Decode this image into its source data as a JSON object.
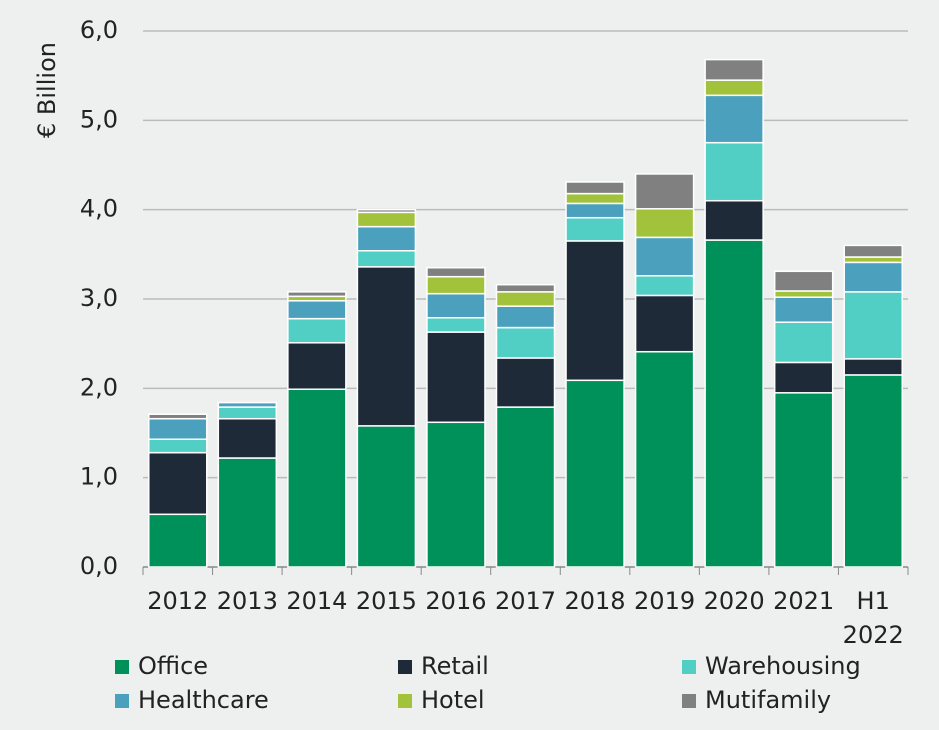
{
  "chart_data": {
    "type": "stacked_bar",
    "y_label": "€ Billion",
    "categories": [
      "2012",
      "2013",
      "2014",
      "2015",
      "2016",
      "2017",
      "2018",
      "2019",
      "2020",
      "2021",
      "H1 2022"
    ],
    "series": [
      {
        "name": "Office",
        "color": "#00915a",
        "values": [
          0.59,
          1.22,
          1.99,
          1.58,
          1.62,
          1.79,
          2.09,
          2.41,
          3.66,
          1.95,
          2.15
        ]
      },
      {
        "name": "Retail",
        "color": "#1e2a38",
        "values": [
          0.69,
          0.44,
          0.52,
          1.78,
          1.01,
          0.55,
          1.56,
          0.63,
          0.44,
          0.34,
          0.18
        ]
      },
      {
        "name": "Warehousing",
        "color": "#52cfc4",
        "values": [
          0.15,
          0.13,
          0.27,
          0.18,
          0.16,
          0.34,
          0.26,
          0.22,
          0.65,
          0.45,
          0.75
        ]
      },
      {
        "name": "Healthcare",
        "color": "#4aa0bd",
        "values": [
          0.23,
          0.05,
          0.2,
          0.27,
          0.27,
          0.24,
          0.16,
          0.43,
          0.53,
          0.28,
          0.33
        ]
      },
      {
        "name": "Hotel",
        "color": "#a3c23c",
        "values": [
          0,
          0,
          0.05,
          0.16,
          0.19,
          0.16,
          0.11,
          0.32,
          0.17,
          0.07,
          0.06
        ]
      },
      {
        "name": "Mutifamily",
        "color": "#808080",
        "values": [
          0.05,
          0,
          0.05,
          0.03,
          0.1,
          0.08,
          0.13,
          0.39,
          0.23,
          0.22,
          0.13
        ]
      }
    ],
    "ylim": [
      0,
      6
    ],
    "yticks": [
      {
        "value": 0,
        "label": "0,0"
      },
      {
        "value": 1,
        "label": "1,0"
      },
      {
        "value": 2,
        "label": "2,0"
      },
      {
        "value": 3,
        "label": "3,0"
      },
      {
        "value": 4,
        "label": "4,0"
      },
      {
        "value": 5,
        "label": "5,0"
      },
      {
        "value": 6,
        "label": "6,0"
      }
    ],
    "grid": true,
    "legend": "bottom"
  }
}
